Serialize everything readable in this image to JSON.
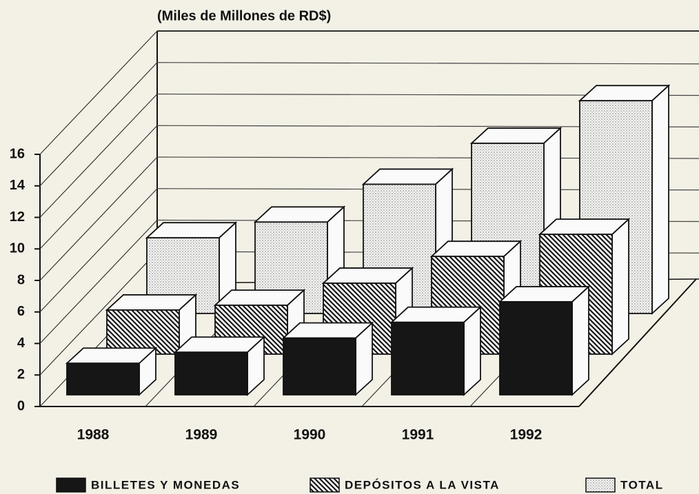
{
  "chart_data": {
    "type": "bar3d",
    "title": "(Miles de Millones de RD$)",
    "categories": [
      "1988",
      "1989",
      "1990",
      "1991",
      "1992"
    ],
    "series": [
      {
        "name": "BILLETES Y MONEDAS",
        "color": "#161616",
        "pattern": "solid",
        "values": [
          2.0,
          2.7,
          3.6,
          4.6,
          5.9
        ]
      },
      {
        "name": "DEPÓSITOS A LA VISTA",
        "color": "#161616",
        "pattern": "hatch",
        "values": [
          2.8,
          3.1,
          4.5,
          6.2,
          7.6
        ]
      },
      {
        "name": "TOTAL",
        "color": "#888888",
        "pattern": "dots",
        "values": [
          4.8,
          5.8,
          8.2,
          10.8,
          13.5
        ]
      }
    ],
    "ylim": [
      0,
      16
    ],
    "yticks": [
      0,
      2,
      4,
      6,
      8,
      10,
      12,
      14,
      16
    ],
    "grid": true
  }
}
